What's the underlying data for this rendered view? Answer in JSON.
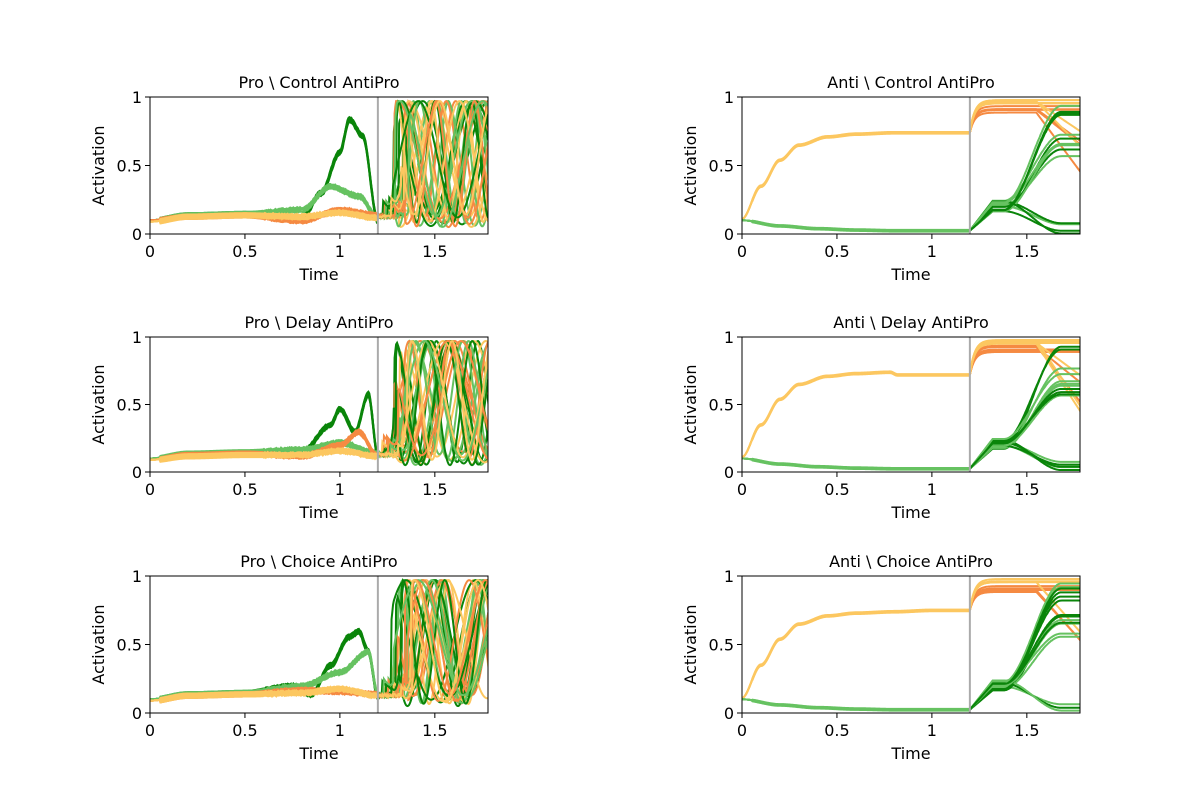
{
  "figure": {
    "background": "#ffffff"
  },
  "colors": {
    "dark_green": "#0a850a",
    "light_green": "#66c261",
    "orange": "#f58a42",
    "light_orange": "#fcc760",
    "marker_line": "#aaaaaa"
  },
  "chart_data": [
    {
      "type": "line",
      "panel": "top-left",
      "title": "Pro \\ Control  AntiPro",
      "xlabel": "Time",
      "ylabel": "Activation",
      "xlim": [
        0,
        1.78
      ],
      "ylim": [
        0,
        1
      ],
      "xticks": [
        "0",
        "0.5",
        "1",
        "1.5"
      ],
      "yticks": [
        "0",
        "0.5",
        "1"
      ],
      "marker_x": 1.2,
      "trial_type": "pro",
      "grid": false,
      "legend": "none",
      "series": [
        {
          "color": "#0a850a",
          "x": [
            0,
            0.2,
            0.5,
            0.8,
            0.9,
            1.0,
            1.05,
            1.12,
            1.2
          ],
          "y": [
            0.1,
            0.14,
            0.15,
            0.12,
            0.3,
            0.6,
            0.84,
            0.72,
            0.1
          ]
        },
        {
          "color": "#66c261",
          "x": [
            0,
            0.2,
            0.5,
            0.8,
            0.95,
            1.1,
            1.2
          ],
          "y": [
            0.1,
            0.14,
            0.15,
            0.18,
            0.35,
            0.28,
            0.12
          ]
        },
        {
          "color": "#f58a42",
          "x": [
            0,
            0.2,
            0.5,
            0.8,
            1.0,
            1.2
          ],
          "y": [
            0.1,
            0.13,
            0.14,
            0.1,
            0.18,
            0.14
          ]
        },
        {
          "color": "#fcc760",
          "x": [
            0,
            0.2,
            0.5,
            0.8,
            1.0,
            1.2
          ],
          "y": [
            0.09,
            0.13,
            0.14,
            0.13,
            0.16,
            0.12
          ]
        }
      ]
    },
    {
      "type": "line",
      "panel": "top-right",
      "title": "Anti \\ Control  AntiPro",
      "xlabel": "Time",
      "ylabel": "Activation",
      "xlim": [
        0,
        1.78
      ],
      "ylim": [
        0,
        1
      ],
      "xticks": [
        "0",
        "0.5",
        "1",
        "1.5"
      ],
      "yticks": [
        "0",
        "0.5",
        "1"
      ],
      "marker_x": 1.2,
      "trial_type": "anti",
      "grid": false,
      "legend": "none",
      "series": [
        {
          "color": "#fcc760",
          "x": [
            0,
            0.1,
            0.2,
            0.3,
            0.45,
            0.6,
            0.8,
            1.0,
            1.2
          ],
          "y": [
            0.11,
            0.35,
            0.54,
            0.65,
            0.71,
            0.73,
            0.74,
            0.74,
            0.74
          ]
        },
        {
          "color": "#66c261",
          "x": [
            0,
            0.2,
            0.4,
            0.6,
            0.8,
            1.0,
            1.2
          ],
          "y": [
            0.1,
            0.06,
            0.04,
            0.03,
            0.025,
            0.025,
            0.025
          ]
        }
      ]
    },
    {
      "type": "line",
      "panel": "middle-left",
      "title": "Pro \\ Delay  AntiPro",
      "xlabel": "Time",
      "ylabel": "Activation",
      "xlim": [
        0,
        1.78
      ],
      "ylim": [
        0,
        1
      ],
      "xticks": [
        "0",
        "0.5",
        "1",
        "1.5"
      ],
      "yticks": [
        "0",
        "0.5",
        "1"
      ],
      "marker_x": 1.2,
      "trial_type": "pro",
      "grid": false,
      "legend": "none",
      "series": [
        {
          "color": "#0a850a",
          "x": [
            0,
            0.2,
            0.5,
            0.8,
            0.95,
            1.0,
            1.08,
            1.15,
            1.2
          ],
          "y": [
            0.1,
            0.13,
            0.14,
            0.15,
            0.35,
            0.47,
            0.3,
            0.58,
            0.12
          ]
        },
        {
          "color": "#66c261",
          "x": [
            0,
            0.2,
            0.5,
            0.8,
            1.0,
            1.2
          ],
          "y": [
            0.1,
            0.14,
            0.15,
            0.17,
            0.22,
            0.14
          ]
        },
        {
          "color": "#f58a42",
          "x": [
            0,
            0.2,
            0.5,
            0.8,
            1.0,
            1.1,
            1.2
          ],
          "y": [
            0.09,
            0.13,
            0.14,
            0.12,
            0.2,
            0.3,
            0.12
          ]
        },
        {
          "color": "#fcc760",
          "x": [
            0,
            0.2,
            0.5,
            0.8,
            1.0,
            1.2
          ],
          "y": [
            0.09,
            0.12,
            0.13,
            0.13,
            0.16,
            0.12
          ]
        }
      ]
    },
    {
      "type": "line",
      "panel": "middle-right",
      "title": "Anti \\ Delay  AntiPro",
      "xlabel": "Time",
      "ylabel": "Activation",
      "xlim": [
        0,
        1.78
      ],
      "ylim": [
        0,
        1
      ],
      "xticks": [
        "0",
        "0.5",
        "1",
        "1.5"
      ],
      "yticks": [
        "0",
        "0.5",
        "1"
      ],
      "marker_x": 1.2,
      "trial_type": "anti",
      "grid": false,
      "legend": "none",
      "series": [
        {
          "color": "#fcc760",
          "x": [
            0,
            0.1,
            0.2,
            0.3,
            0.45,
            0.6,
            0.78,
            0.82,
            1.0,
            1.2
          ],
          "y": [
            0.11,
            0.35,
            0.54,
            0.65,
            0.71,
            0.73,
            0.74,
            0.72,
            0.72,
            0.72
          ]
        },
        {
          "color": "#66c261",
          "x": [
            0,
            0.2,
            0.4,
            0.6,
            0.8,
            1.0,
            1.2
          ],
          "y": [
            0.1,
            0.06,
            0.04,
            0.03,
            0.025,
            0.025,
            0.025
          ]
        }
      ]
    },
    {
      "type": "line",
      "panel": "bottom-left",
      "title": "Pro \\ Choice  AntiPro",
      "xlabel": "Time",
      "ylabel": "Activation",
      "xlim": [
        0,
        1.78
      ],
      "ylim": [
        0,
        1
      ],
      "xticks": [
        "0",
        "0.5",
        "1",
        "1.5"
      ],
      "yticks": [
        "0",
        "0.5",
        "1"
      ],
      "marker_x": 1.2,
      "trial_type": "pro",
      "grid": false,
      "legend": "none",
      "series": [
        {
          "color": "#0a850a",
          "x": [
            0,
            0.2,
            0.5,
            0.75,
            0.85,
            0.95,
            1.05,
            1.1,
            1.15,
            1.2
          ],
          "y": [
            0.1,
            0.14,
            0.15,
            0.2,
            0.14,
            0.35,
            0.56,
            0.6,
            0.45,
            0.12
          ]
        },
        {
          "color": "#66c261",
          "x": [
            0,
            0.2,
            0.5,
            0.8,
            1.0,
            1.15,
            1.2
          ],
          "y": [
            0.1,
            0.14,
            0.15,
            0.2,
            0.3,
            0.45,
            0.14
          ]
        },
        {
          "color": "#f58a42",
          "x": [
            0,
            0.2,
            0.5,
            0.8,
            1.0,
            1.2
          ],
          "y": [
            0.09,
            0.13,
            0.14,
            0.17,
            0.16,
            0.14
          ]
        },
        {
          "color": "#fcc760",
          "x": [
            0,
            0.2,
            0.5,
            0.8,
            1.0,
            1.2
          ],
          "y": [
            0.09,
            0.13,
            0.14,
            0.15,
            0.18,
            0.13
          ]
        }
      ]
    },
    {
      "type": "line",
      "panel": "bottom-right",
      "title": "Anti \\ Choice  AntiPro",
      "xlabel": "Time",
      "ylabel": "Activation",
      "xlim": [
        0,
        1.78
      ],
      "ylim": [
        0,
        1
      ],
      "xticks": [
        "0",
        "0.5",
        "1",
        "1.5"
      ],
      "yticks": [
        "0",
        "0.5",
        "1"
      ],
      "marker_x": 1.2,
      "trial_type": "anti",
      "grid": false,
      "legend": "none",
      "series": [
        {
          "color": "#fcc760",
          "x": [
            0,
            0.1,
            0.2,
            0.3,
            0.45,
            0.6,
            0.8,
            1.0,
            1.2
          ],
          "y": [
            0.11,
            0.35,
            0.54,
            0.65,
            0.71,
            0.73,
            0.74,
            0.75,
            0.75
          ]
        },
        {
          "color": "#66c261",
          "x": [
            0,
            0.2,
            0.4,
            0.6,
            0.8,
            1.0,
            1.2
          ],
          "y": [
            0.1,
            0.06,
            0.04,
            0.03,
            0.025,
            0.025,
            0.025
          ]
        }
      ]
    }
  ]
}
